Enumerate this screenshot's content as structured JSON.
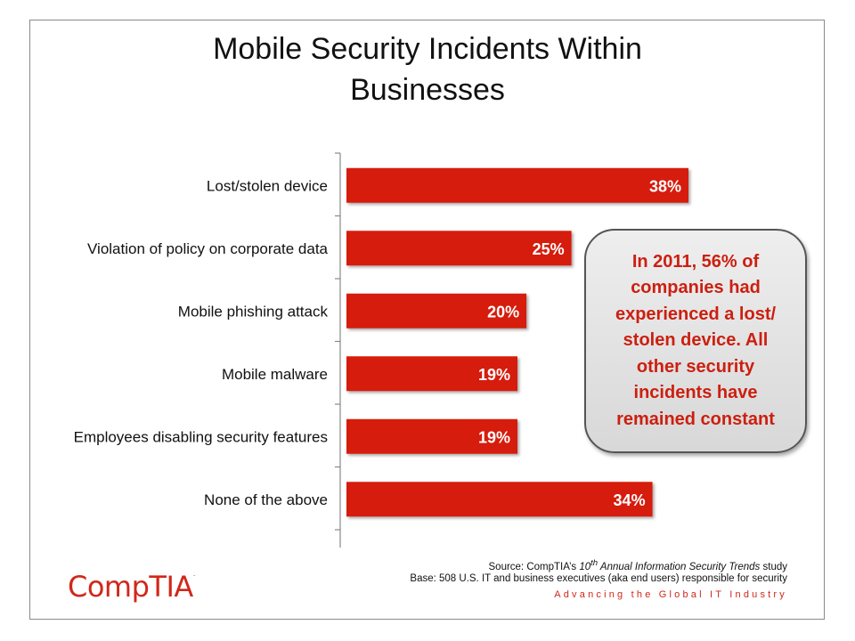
{
  "chart_data": {
    "type": "bar",
    "orientation": "horizontal",
    "title": "Mobile Security Incidents Within Businesses",
    "title_lines": [
      "Mobile Security Incidents Within",
      "Businesses"
    ],
    "categories": [
      "Lost/stolen device",
      "Violation of policy on corporate data",
      "Mobile phishing attack",
      "Mobile malware",
      "Employees disabling security features",
      "None of the above"
    ],
    "values": [
      38,
      25,
      20,
      19,
      19,
      34
    ],
    "value_labels": [
      "38%",
      "25%",
      "20%",
      "19%",
      "19%",
      "34%"
    ],
    "unit": "%",
    "xlim": [
      0,
      40
    ],
    "bar_color": "#d61e0c",
    "grid": false,
    "legend": "none"
  },
  "callout": {
    "text": "In 2011, 56% of companies had experienced a lost/ stolen device. All other security incidents have remained constant",
    "color": "#cc1f10"
  },
  "footer": {
    "source_prefix": "Source: CompTIA’s ",
    "source_sup": "th",
    "source_num": "10",
    "source_italic": " Annual Information Security Trends",
    "source_suffix": " study",
    "base": "Base: 508 U.S. IT and business executives (aka end users) responsible for security",
    "tagline": "Advancing the Global IT Industry"
  },
  "logo": {
    "text": "CompTIA",
    "mark": "."
  }
}
